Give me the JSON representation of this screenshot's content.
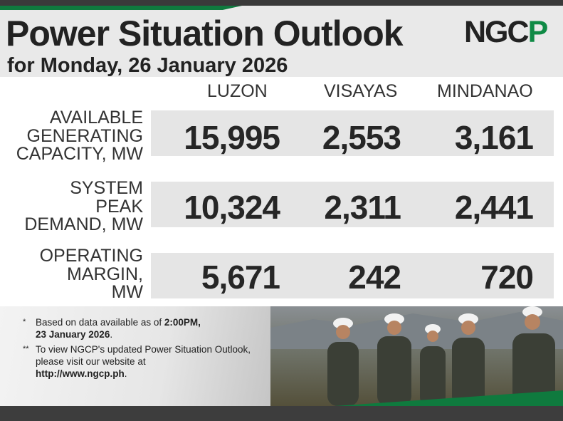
{
  "header": {
    "title": "Power Situation Outlook",
    "subtitle": "for Monday, 26 January 2026",
    "logo_dark": "NGC",
    "logo_green": "P"
  },
  "table": {
    "columns": [
      "LUZON",
      "VISAYAS",
      "MINDANAO"
    ],
    "rows": [
      {
        "label": "AVAILABLE\nGENERATING\nCAPACITY, MW",
        "values": [
          "15,995",
          "2,553",
          "3,161"
        ]
      },
      {
        "label": "SYSTEM\nPEAK\nDEMAND, MW",
        "values": [
          "10,324",
          "2,311",
          "2,441"
        ]
      },
      {
        "label": "OPERATING\nMARGIN,\nMW",
        "values": [
          "5,671",
          "242",
          "720"
        ]
      }
    ]
  },
  "notes": {
    "note1": {
      "mark": "*",
      "text_pre": "Based on data available as of ",
      "bold1": "2:00PM,",
      "bold2": "23 January 2026",
      "text_post": "."
    },
    "note2": {
      "mark": "**",
      "text_pre": "To view NGCP's updated Power Situation Outlook, please visit our website at",
      "bold": "http://www.ngcp.ph",
      "text_post": "."
    }
  },
  "colors": {
    "brand_green": "#0f8a45",
    "dark_bar": "#3a3a3a",
    "band": "#e5e5e5"
  }
}
